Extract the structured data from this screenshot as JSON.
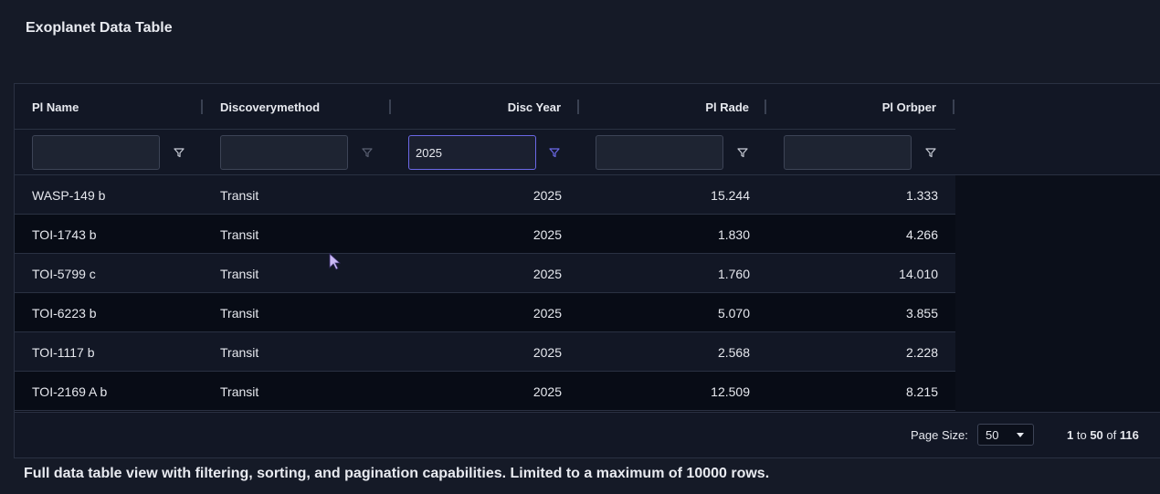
{
  "page": {
    "title": "Exoplanet Data Table",
    "caption": "Full data table view with filtering, sorting, and pagination capabilities. Limited to a maximum of 10000 rows."
  },
  "columns": [
    {
      "label": "Pl Name",
      "align": "left",
      "filter_value": "",
      "filter_active": false
    },
    {
      "label": "Discoverymethod",
      "align": "left",
      "filter_value": "",
      "filter_active": false
    },
    {
      "label": "Disc Year",
      "align": "right",
      "filter_value": "2025",
      "filter_active": true
    },
    {
      "label": "Pl Rade",
      "align": "right",
      "filter_value": "",
      "filter_active": false
    },
    {
      "label": "Pl Orbper",
      "align": "right",
      "filter_value": "",
      "filter_active": false
    }
  ],
  "rows": [
    [
      "WASP-149 b",
      "Transit",
      "2025",
      "15.244",
      "1.333"
    ],
    [
      "TOI-1743 b",
      "Transit",
      "2025",
      "1.830",
      "4.266"
    ],
    [
      "TOI-5799 c",
      "Transit",
      "2025",
      "1.760",
      "14.010"
    ],
    [
      "TOI-6223 b",
      "Transit",
      "2025",
      "5.070",
      "3.855"
    ],
    [
      "TOI-1117 b",
      "Transit",
      "2025",
      "2.568",
      "2.228"
    ],
    [
      "TOI-2169 A b",
      "Transit",
      "2025",
      "12.509",
      "8.215"
    ]
  ],
  "footer": {
    "page_size_label": "Page Size:",
    "page_size_value": "50",
    "range_start": "1",
    "range_to": "to",
    "range_end": "50",
    "range_of": "of",
    "total": "116"
  },
  "colors": {
    "accent": "#6b68e6",
    "filter_icon": "#c8ccd6",
    "filter_icon_dim": "#5a6072"
  },
  "icons": {
    "filter": "filter-icon",
    "cursor": "mouse-pointer-icon"
  }
}
